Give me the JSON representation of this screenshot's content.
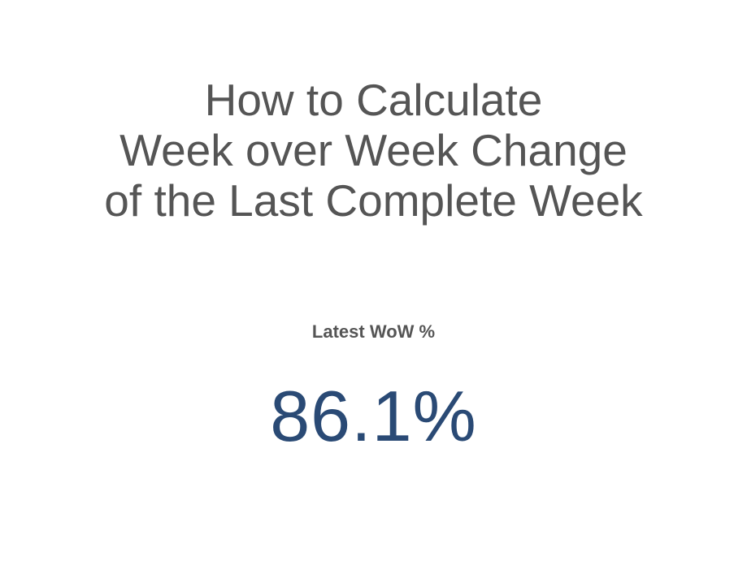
{
  "title": {
    "lines": [
      "How to Calculate",
      "Week over Week Change",
      "of the Last Complete Week"
    ]
  },
  "kpi": {
    "label": "Latest WoW %",
    "value": "86.1%",
    "value_color": "#2a4a75"
  }
}
